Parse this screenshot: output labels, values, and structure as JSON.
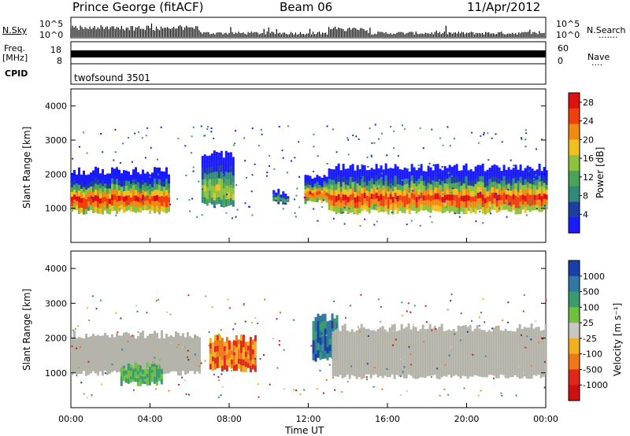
{
  "header": {
    "station": "Prince George (fitACF)",
    "beam": "Beam 06",
    "date": "11/Apr/2012"
  },
  "top_panels": {
    "nsky_label": "N.Sky",
    "nsearch_label": "N.Search",
    "nsearch_dots": ".......",
    "nsky_ticks": [
      "10^5",
      "10^0"
    ],
    "nsearch_ticks": [
      "10^5",
      "10^0"
    ],
    "freq_label_line1": "Freq.",
    "freq_label_line2": "[MHz]",
    "freq_ticks": [
      "18",
      "8"
    ],
    "nave_label": "Nave",
    "nave_dots": "....",
    "nave_ticks": [
      "60",
      "0"
    ],
    "cpid_label": "CPID",
    "cpid_value": "twofsound 3501"
  },
  "colors": {
    "power_scale": [
      "#1a1aff",
      "#1e3fa0",
      "#2f8a7a",
      "#4aa356",
      "#8dc23c",
      "#f0c020",
      "#f08a10",
      "#f04010",
      "#e01010"
    ],
    "velocity_scale": [
      "#1a3fa6",
      "#2f78a0",
      "#3a9a70",
      "#70c040",
      "#c8c8c0",
      "#f0b020",
      "#f07818",
      "#e02818",
      "#d01010"
    ],
    "ground_scatter": "#b4b4aa"
  },
  "chart_data": [
    {
      "type": "heatmap",
      "panel": "power",
      "ylabel": "Slant Range [km]",
      "yticks": [
        "1000",
        "2000",
        "3000",
        "4000"
      ],
      "ylim": [
        0,
        4500
      ],
      "xlim": [
        "00:00",
        "24:00"
      ],
      "colorbar_label": "Power [dB]",
      "colorbar_ticks": [
        "4",
        "8",
        "12",
        "16",
        "20",
        "24",
        "28"
      ],
      "colorbar_range": [
        0,
        30
      ],
      "bands": [
        {
          "t0": 0.0,
          "t1": 5.0,
          "rlo": 900,
          "rhi": 2100,
          "peak": 28
        },
        {
          "t0": 6.6,
          "t1": 8.2,
          "rlo": 1100,
          "rhi": 2600,
          "peak": 18
        },
        {
          "t0": 10.2,
          "t1": 11.0,
          "rlo": 1150,
          "rhi": 1450,
          "peak": 12
        },
        {
          "t0": 11.8,
          "t1": 13.0,
          "rlo": 1200,
          "rhi": 1900,
          "peak": 26
        },
        {
          "t0": 13.0,
          "t1": 24.0,
          "rlo": 900,
          "rhi": 2200,
          "peak": 28
        }
      ]
    },
    {
      "type": "heatmap",
      "panel": "velocity",
      "ylabel": "Slant Range [km]",
      "yticks": [
        "1000",
        "2000",
        "3000",
        "4000"
      ],
      "ylim": [
        0,
        4500
      ],
      "xlabel": "Time UT",
      "xticks": [
        "00:00",
        "04:00",
        "08:00",
        "12:00",
        "16:00",
        "20:00",
        "00:00"
      ],
      "colorbar_label": "Velocity [m s⁻¹]",
      "colorbar_ticks": [
        "1000",
        "500",
        "100",
        "25",
        "-25",
        "-100",
        "-500",
        "-1000"
      ],
      "regions": [
        {
          "t0": 0.0,
          "t1": 6.5,
          "rlo": 1000,
          "rhi": 2100,
          "kind": "ground"
        },
        {
          "t0": 2.5,
          "t1": 4.6,
          "rlo": 700,
          "rhi": 1200,
          "kind": "green"
        },
        {
          "t0": 7.0,
          "t1": 9.3,
          "rlo": 1100,
          "rhi": 2000,
          "kind": "orange"
        },
        {
          "t0": 12.2,
          "t1": 13.4,
          "rlo": 1400,
          "rhi": 2600,
          "kind": "blue"
        },
        {
          "t0": 13.2,
          "t1": 24.0,
          "rlo": 900,
          "rhi": 2300,
          "kind": "ground"
        }
      ]
    }
  ]
}
